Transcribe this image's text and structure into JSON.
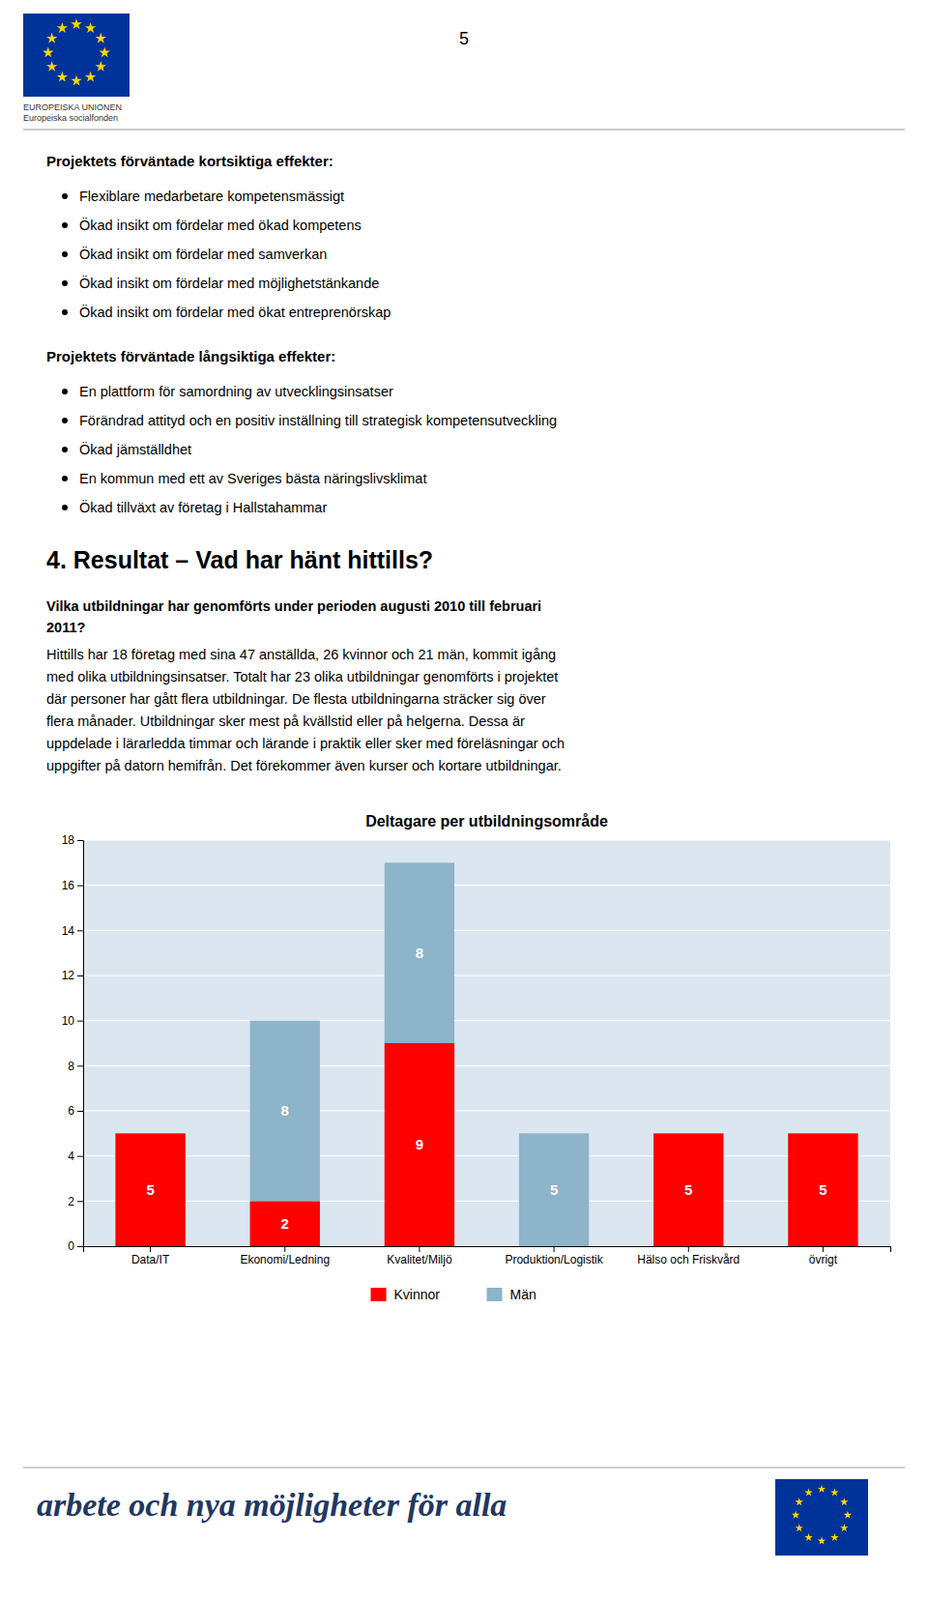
{
  "page_number": "5",
  "header_lines": [
    "EUROPEISKA UNIONEN",
    "Europeiska socialfonden"
  ],
  "short_effects_title": "Projektets förväntade kortsiktiga effekter:",
  "short_effects_bullets": [
    "Flexiblare medarbetare kompetensmässigt",
    "Ökad insikt om fördelar med ökad kompetens",
    "Ökad insikt om fördelar med samverkan",
    "Ökad insikt om fördelar med möjlighetstänkande",
    "Ökad insikt om fördelar med ökat entreprenörskap"
  ],
  "long_effects_title": "Projektets förväntade långsiktiga effekter:",
  "long_effects_bullets": [
    "En plattform för samordning av utvecklingsinsatser",
    "Förändrad attityd och en positiv inställning till strategisk kompetensutveckling",
    "Ökad jämställdhet",
    "En kommun med ett av Sveriges bästa näringslivsklimat",
    "Ökad tillväxt av företag i Hallstahammar"
  ],
  "section_title": "4. Resultat – Vad har hänt hittills?",
  "question_lines": [
    "Vilka utbildningar har genomförts under perioden augusti 2010 till februari",
    "2011?"
  ],
  "body_text_lines": [
    "Hittills har 18 företag med sina 47 anställda, 26 kvinnor och 21 män, kommit igång",
    "med olika utbildningsinsatser. Totalt har 23 olika utbildningar genomförts i projektet",
    "där personer har gått flera utbildningar. De flesta utbildningarna sträcker sig över",
    "flera månader. Utbildningar sker mest på kvällstid eller på helgerna. Dessa är",
    "uppdelade i lärarledda timmar och lärande i praktik eller sker med föreläsningar och",
    "uppgifter på datorn hemifrån. Det förekommer även kurser och kortare utbildningar."
  ],
  "footer_text": "arbete och nya möjligheter för alla",
  "chart_data": {
    "type": "bar",
    "stacked": true,
    "title": "Deltagare per utbildningsområde",
    "categories": [
      "Data/IT",
      "Ekonomi/Ledning",
      "Kvalitet/Miljö",
      "Produktion/Logistik",
      "Hälso och Friskvård",
      "övrigt"
    ],
    "series": [
      {
        "name": "Kvinnor",
        "color": "#ff0000",
        "values": [
          5,
          2,
          9,
          0,
          5,
          5
        ]
      },
      {
        "name": "Män",
        "color": "#8db4c8",
        "values": [
          0,
          8,
          8,
          5,
          0,
          0
        ]
      }
    ],
    "ylim": [
      0,
      18
    ],
    "yticks": [
      0,
      2,
      4,
      6,
      8,
      10,
      12,
      14,
      16,
      18
    ],
    "grid": true,
    "legend": "bottom",
    "data_labels": true
  }
}
